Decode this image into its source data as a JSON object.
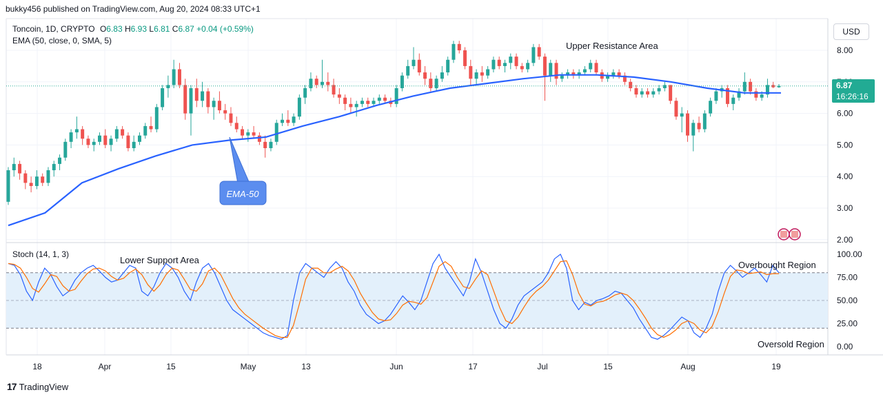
{
  "header": {
    "published": "bukky456 published on TradingView.com, Aug 20, 2024 08:33 UTC+1"
  },
  "legend": {
    "symbol": "Toncoin, 1D, CRYPTO",
    "open_label": "O",
    "open": "6.83",
    "high_label": "H",
    "high": "6.93",
    "low_label": "L",
    "low": "6.81",
    "close_label": "C",
    "close": "6.87",
    "change": "+0.04 (+0.59%)",
    "ema": "EMA (50, close, 0, SMA, 5)",
    "stoch": "Stoch (14, 1, 3)"
  },
  "currency": "USD",
  "last_price": {
    "value": "6.87",
    "countdown": "16:26:16"
  },
  "annotations": {
    "upper_resistance": "Upper Resistance Area",
    "lower_support": "Lower Support Area",
    "overbought": "Overbought Region",
    "oversold": "Oversold Region",
    "ema_callout": "EMA-50"
  },
  "footer": {
    "brand": "TradingView"
  },
  "colors": {
    "up": "#26a69a",
    "down": "#ef5350",
    "ema": "#2962ff",
    "stoch_k": "#2962ff",
    "stoch_d": "#ff6d00",
    "stoch_band": "#e3f0fb",
    "last_price": "#22ab94",
    "callout": "#5b8def"
  },
  "chart_data": [
    {
      "type": "candlestick",
      "title": "Toncoin, 1D, CRYPTO",
      "y_ticks": [
        "2.00",
        "3.00",
        "4.00",
        "5.00",
        "6.00",
        "7.00",
        "8.00"
      ],
      "x_ticks": [
        "18",
        "Apr",
        "15",
        "May",
        "13",
        "Jun",
        "17",
        "Jul",
        "15",
        "Aug",
        "19"
      ],
      "ylim": [
        1.8,
        9.0
      ],
      "series": [
        {
          "name": "EMA (50, close, 0, SMA, 5)",
          "x": [
            "Mar 12",
            "Mar 18",
            "Apr 1",
            "Apr 8",
            "Apr 15",
            "Apr 22",
            "Apr 29",
            "May 6",
            "May 13",
            "May 20",
            "Jun 3",
            "Jun 10",
            "Jun 17",
            "Jun 24",
            "Jul 1",
            "Jul 8",
            "Jul 15",
            "Jul 22",
            "Jul 29",
            "Aug 5",
            "Aug 12",
            "Aug 19"
          ],
          "values": [
            2.45,
            2.85,
            3.8,
            4.25,
            4.65,
            5.0,
            5.15,
            5.25,
            5.6,
            5.9,
            6.25,
            6.55,
            6.8,
            6.95,
            7.1,
            7.22,
            7.22,
            7.15,
            7.0,
            6.8,
            6.65,
            6.65
          ]
        }
      ],
      "candles": [
        [
          3.2,
          4.3,
          3.1,
          4.2
        ],
        [
          4.2,
          4.6,
          4.0,
          4.4
        ],
        [
          4.4,
          4.5,
          3.9,
          4.1
        ],
        [
          4.1,
          4.2,
          3.6,
          3.8
        ],
        [
          3.8,
          4.0,
          3.5,
          3.7
        ],
        [
          3.7,
          4.2,
          3.6,
          4.0
        ],
        [
          4.0,
          4.1,
          3.7,
          3.8
        ],
        [
          3.8,
          4.3,
          3.7,
          4.2
        ],
        [
          4.2,
          4.5,
          4.0,
          4.4
        ],
        [
          4.4,
          4.7,
          4.2,
          4.6
        ],
        [
          4.6,
          5.2,
          4.5,
          5.1
        ],
        [
          5.1,
          5.5,
          4.9,
          5.4
        ],
        [
          5.4,
          5.9,
          5.2,
          5.5
        ],
        [
          5.5,
          5.6,
          5.0,
          5.2
        ],
        [
          5.2,
          5.3,
          4.9,
          5.0
        ],
        [
          5.0,
          5.2,
          4.8,
          5.1
        ],
        [
          5.1,
          5.4,
          5.0,
          5.3
        ],
        [
          5.3,
          5.5,
          4.9,
          5.0
        ],
        [
          5.0,
          5.3,
          4.8,
          5.2
        ],
        [
          5.2,
          5.6,
          5.1,
          5.5
        ],
        [
          5.5,
          5.6,
          5.2,
          5.3
        ],
        [
          5.3,
          5.4,
          4.8,
          4.9
        ],
        [
          4.9,
          5.3,
          4.8,
          5.1
        ],
        [
          5.1,
          5.4,
          5.0,
          5.3
        ],
        [
          5.3,
          5.7,
          5.2,
          5.6
        ],
        [
          5.6,
          5.9,
          5.4,
          5.5
        ],
        [
          5.5,
          6.3,
          5.4,
          6.2
        ],
        [
          6.2,
          6.9,
          6.1,
          6.8
        ],
        [
          6.8,
          7.2,
          6.5,
          6.9
        ],
        [
          6.9,
          7.7,
          6.8,
          7.4
        ],
        [
          7.4,
          7.6,
          6.8,
          6.9
        ],
        [
          6.9,
          7.1,
          5.8,
          6.0
        ],
        [
          6.0,
          6.9,
          5.3,
          6.8
        ],
        [
          6.8,
          7.1,
          6.2,
          6.4
        ],
        [
          6.4,
          7.0,
          6.2,
          6.7
        ],
        [
          6.7,
          6.8,
          6.0,
          6.2
        ],
        [
          6.2,
          6.5,
          5.8,
          6.4
        ],
        [
          6.4,
          6.7,
          6.0,
          6.1
        ],
        [
          6.1,
          6.3,
          5.8,
          6.0
        ],
        [
          6.0,
          6.2,
          5.6,
          5.7
        ],
        [
          5.7,
          5.9,
          5.4,
          5.5
        ],
        [
          5.5,
          5.6,
          5.2,
          5.3
        ],
        [
          5.3,
          5.5,
          5.1,
          5.4
        ],
        [
          5.4,
          5.6,
          5.2,
          5.3
        ],
        [
          5.3,
          5.4,
          5.0,
          5.1
        ],
        [
          5.1,
          5.3,
          4.6,
          4.9
        ],
        [
          4.9,
          5.2,
          4.8,
          5.1
        ],
        [
          5.1,
          5.8,
          5.0,
          5.7
        ],
        [
          5.7,
          6.0,
          5.6,
          5.8
        ],
        [
          5.8,
          6.1,
          5.6,
          5.7
        ],
        [
          5.7,
          6.0,
          5.6,
          5.9
        ],
        [
          5.9,
          6.6,
          5.8,
          6.5
        ],
        [
          6.5,
          6.9,
          6.3,
          6.8
        ],
        [
          6.8,
          7.3,
          6.7,
          7.1
        ],
        [
          7.1,
          7.2,
          6.8,
          6.9
        ],
        [
          6.9,
          7.7,
          6.8,
          7.0
        ],
        [
          7.0,
          7.3,
          6.7,
          6.9
        ],
        [
          6.9,
          7.1,
          6.5,
          6.6
        ],
        [
          6.6,
          6.8,
          6.3,
          6.5
        ],
        [
          6.5,
          6.6,
          6.1,
          6.3
        ],
        [
          6.3,
          6.5,
          6.0,
          6.2
        ],
        [
          6.2,
          6.4,
          5.9,
          6.3
        ],
        [
          6.3,
          6.5,
          6.2,
          6.4
        ],
        [
          6.4,
          6.5,
          6.2,
          6.3
        ],
        [
          6.3,
          6.5,
          6.2,
          6.4
        ],
        [
          6.4,
          6.6,
          6.3,
          6.5
        ],
        [
          6.5,
          6.6,
          6.3,
          6.4
        ],
        [
          6.4,
          6.5,
          6.2,
          6.3
        ],
        [
          6.3,
          6.9,
          6.2,
          6.8
        ],
        [
          6.8,
          7.3,
          6.7,
          7.2
        ],
        [
          7.2,
          7.7,
          7.1,
          7.5
        ],
        [
          7.5,
          8.1,
          7.4,
          7.7
        ],
        [
          7.7,
          7.9,
          7.2,
          7.3
        ],
        [
          7.3,
          7.5,
          6.9,
          7.1
        ],
        [
          7.1,
          7.3,
          6.7,
          6.8
        ],
        [
          6.8,
          7.2,
          6.7,
          7.1
        ],
        [
          7.1,
          7.5,
          7.0,
          7.3
        ],
        [
          7.3,
          7.8,
          7.2,
          7.7
        ],
        [
          7.7,
          8.3,
          7.6,
          8.2
        ],
        [
          8.2,
          8.3,
          7.9,
          8.0
        ],
        [
          8.0,
          8.1,
          7.4,
          7.5
        ],
        [
          7.5,
          7.7,
          6.9,
          7.1
        ],
        [
          7.1,
          7.4,
          6.9,
          7.3
        ],
        [
          7.3,
          7.5,
          7.0,
          7.2
        ],
        [
          7.2,
          7.5,
          7.1,
          7.4
        ],
        [
          7.4,
          7.8,
          7.3,
          7.7
        ],
        [
          7.7,
          7.8,
          7.4,
          7.5
        ],
        [
          7.5,
          7.7,
          7.3,
          7.6
        ],
        [
          7.6,
          7.9,
          7.4,
          7.8
        ],
        [
          7.8,
          7.9,
          7.4,
          7.5
        ],
        [
          7.5,
          7.6,
          7.3,
          7.4
        ],
        [
          7.4,
          7.7,
          7.3,
          7.6
        ],
        [
          7.6,
          8.2,
          7.5,
          8.1
        ],
        [
          8.1,
          8.2,
          7.7,
          7.8
        ],
        [
          7.8,
          7.9,
          6.4,
          7.2
        ],
        [
          7.2,
          7.7,
          7.0,
          7.6
        ],
        [
          7.6,
          7.7,
          6.9,
          7.1
        ],
        [
          7.1,
          7.3,
          7.0,
          7.2
        ],
        [
          7.2,
          7.4,
          7.1,
          7.3
        ],
        [
          7.3,
          7.4,
          7.1,
          7.2
        ],
        [
          7.2,
          7.4,
          7.1,
          7.3
        ],
        [
          7.3,
          7.5,
          7.2,
          7.4
        ],
        [
          7.4,
          7.7,
          7.3,
          7.6
        ],
        [
          7.6,
          7.7,
          7.2,
          7.3
        ],
        [
          7.3,
          7.4,
          7.0,
          7.1
        ],
        [
          7.1,
          7.3,
          7.0,
          7.2
        ],
        [
          7.2,
          7.4,
          7.1,
          7.3
        ],
        [
          7.3,
          7.4,
          7.1,
          7.2
        ],
        [
          7.2,
          7.3,
          6.9,
          7.0
        ],
        [
          7.0,
          7.1,
          6.7,
          6.8
        ],
        [
          6.8,
          6.9,
          6.5,
          6.6
        ],
        [
          6.6,
          6.8,
          6.5,
          6.7
        ],
        [
          6.7,
          6.8,
          6.5,
          6.6
        ],
        [
          6.6,
          6.8,
          6.5,
          6.7
        ],
        [
          6.7,
          6.9,
          6.6,
          6.8
        ],
        [
          6.8,
          7.0,
          6.7,
          6.9
        ],
        [
          6.9,
          6.9,
          6.3,
          6.4
        ],
        [
          6.4,
          6.5,
          5.8,
          5.9
        ],
        [
          5.9,
          6.2,
          5.4,
          6.0
        ],
        [
          6.0,
          6.1,
          5.1,
          5.3
        ],
        [
          5.3,
          5.8,
          4.8,
          5.7
        ],
        [
          5.7,
          5.9,
          5.4,
          5.5
        ],
        [
          5.5,
          6.1,
          5.4,
          6.0
        ],
        [
          6.0,
          6.5,
          5.9,
          6.4
        ],
        [
          6.4,
          6.8,
          6.3,
          6.7
        ],
        [
          6.7,
          6.9,
          6.5,
          6.8
        ],
        [
          6.8,
          6.9,
          6.2,
          6.3
        ],
        [
          6.3,
          6.6,
          6.1,
          6.5
        ],
        [
          6.5,
          6.8,
          6.4,
          6.7
        ],
        [
          6.7,
          7.3,
          6.6,
          7.0
        ],
        [
          7.0,
          7.1,
          6.6,
          6.7
        ],
        [
          6.7,
          6.8,
          6.4,
          6.5
        ],
        [
          6.5,
          6.7,
          6.4,
          6.6
        ],
        [
          6.6,
          7.1,
          6.5,
          6.9
        ],
        [
          6.9,
          7.0,
          6.8,
          6.83
        ],
        [
          6.83,
          6.93,
          6.81,
          6.87
        ]
      ]
    },
    {
      "type": "line",
      "title": "Stoch (14, 1, 3)",
      "y_ticks": [
        "0.00",
        "25.00",
        "50.00",
        "75.00",
        "100.00"
      ],
      "ylim": [
        -12,
        103
      ],
      "reference_lines": [
        20,
        50,
        80
      ],
      "series": [
        {
          "name": "%K",
          "values": [
            90,
            88,
            78,
            60,
            50,
            70,
            85,
            78,
            65,
            55,
            60,
            72,
            80,
            85,
            88,
            82,
            75,
            70,
            72,
            80,
            88,
            85,
            60,
            55,
            65,
            80,
            90,
            85,
            75,
            60,
            50,
            70,
            85,
            90,
            80,
            65,
            50,
            40,
            35,
            30,
            25,
            20,
            15,
            12,
            10,
            8,
            12,
            50,
            80,
            90,
            85,
            80,
            75,
            85,
            92,
            85,
            70,
            60,
            45,
            35,
            30,
            25,
            28,
            35,
            45,
            55,
            48,
            40,
            50,
            70,
            90,
            100,
            85,
            75,
            65,
            55,
            70,
            95,
            80,
            60,
            40,
            25,
            20,
            30,
            45,
            55,
            60,
            65,
            70,
            80,
            95,
            100,
            85,
            50,
            40,
            48,
            45,
            50,
            52,
            55,
            60,
            58,
            50,
            42,
            30,
            20,
            10,
            8,
            12,
            18,
            25,
            32,
            28,
            15,
            10,
            20,
            35,
            60,
            80,
            88,
            82,
            75,
            80,
            85,
            78,
            70,
            88,
            80
          ]
        },
        {
          "name": "%D",
          "values": [
            90,
            89,
            85,
            75,
            63,
            59,
            68,
            78,
            76,
            66,
            60,
            62,
            71,
            79,
            84,
            85,
            82,
            76,
            72,
            74,
            80,
            84,
            78,
            67,
            60,
            67,
            78,
            85,
            83,
            73,
            62,
            60,
            68,
            82,
            85,
            78,
            65,
            52,
            42,
            35,
            30,
            25,
            20,
            16,
            12,
            10,
            10,
            23,
            47,
            73,
            85,
            85,
            80,
            80,
            84,
            87,
            82,
            72,
            58,
            47,
            37,
            30,
            28,
            29,
            36,
            45,
            49,
            48,
            46,
            53,
            70,
            87,
            92,
            87,
            75,
            65,
            63,
            73,
            82,
            78,
            60,
            42,
            28,
            25,
            32,
            43,
            53,
            60,
            65,
            72,
            82,
            92,
            93,
            78,
            58,
            46,
            44,
            48,
            49,
            52,
            56,
            58,
            56,
            50,
            41,
            31,
            20,
            13,
            10,
            13,
            18,
            25,
            28,
            25,
            18,
            15,
            22,
            38,
            58,
            76,
            83,
            82,
            79,
            80,
            81,
            78,
            79,
            79
          ]
        }
      ]
    }
  ]
}
